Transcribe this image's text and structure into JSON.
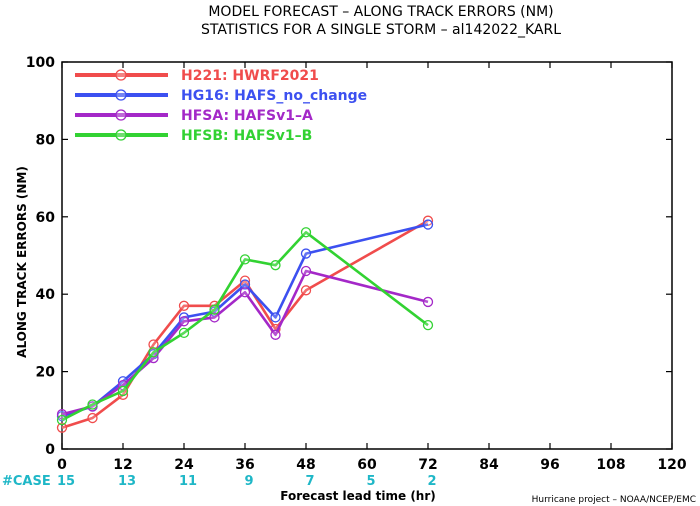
{
  "chart_data": {
    "type": "line",
    "title": "MODEL FORECAST – ALONG TRACK ERRORS (NM)",
    "subtitle": "STATISTICS FOR A SINGLE STORM – al142022_KARL",
    "xlabel": "Forecast lead time (hr)",
    "ylabel": "ALONG TRACK ERRORS (NM)",
    "xlim": [
      0,
      120
    ],
    "ylim": [
      0,
      100
    ],
    "x_ticks": [
      0,
      12,
      24,
      36,
      48,
      60,
      72,
      84,
      96,
      108,
      120
    ],
    "y_ticks": [
      0,
      20,
      40,
      60,
      80,
      100
    ],
    "grid": false,
    "legend_position": "top-left",
    "series": [
      {
        "name": "H221: HWRF2021",
        "color": "#f04c4c",
        "points": [
          [
            0,
            5.5
          ],
          [
            6,
            8
          ],
          [
            12,
            14
          ],
          [
            18,
            27
          ],
          [
            24,
            37
          ],
          [
            30,
            37
          ],
          [
            36,
            43.5
          ],
          [
            42,
            31
          ],
          [
            48,
            41
          ],
          [
            72,
            59
          ]
        ]
      },
      {
        "name": "HG16: HAFS_no_change",
        "color": "#3c50f0",
        "points": [
          [
            0,
            8.5
          ],
          [
            6,
            11
          ],
          [
            12,
            17.5
          ],
          [
            18,
            24.5
          ],
          [
            24,
            34
          ],
          [
            30,
            35.5
          ],
          [
            36,
            42.5
          ],
          [
            42,
            34
          ],
          [
            48,
            50.5
          ],
          [
            72,
            58
          ]
        ]
      },
      {
        "name": "HFSA: HAFSv1–A",
        "color": "#a428c8",
        "points": [
          [
            0,
            9
          ],
          [
            6,
            11
          ],
          [
            12,
            16.5
          ],
          [
            18,
            23.5
          ],
          [
            24,
            33
          ],
          [
            30,
            34
          ],
          [
            36,
            40.5
          ],
          [
            42,
            29.5
          ],
          [
            48,
            46
          ],
          [
            72,
            38
          ]
        ]
      },
      {
        "name": "HFSB: HAFSv1–B",
        "color": "#32d232",
        "points": [
          [
            0,
            7.5
          ],
          [
            6,
            11.5
          ],
          [
            12,
            15
          ],
          [
            18,
            25
          ],
          [
            24,
            30
          ],
          [
            30,
            36
          ],
          [
            36,
            49
          ],
          [
            42,
            47.5
          ],
          [
            48,
            56
          ],
          [
            72,
            32
          ]
        ]
      }
    ],
    "case_counts": {
      "label": "#CASE",
      "x": [
        0,
        12,
        24,
        36,
        48,
        60,
        72
      ],
      "values": [
        "15",
        "13",
        "11",
        "9",
        "7",
        "5",
        "2"
      ],
      "color": "#1fb7c7"
    },
    "credit": "Hurricane project – NOAA/NCEP/EMC"
  }
}
